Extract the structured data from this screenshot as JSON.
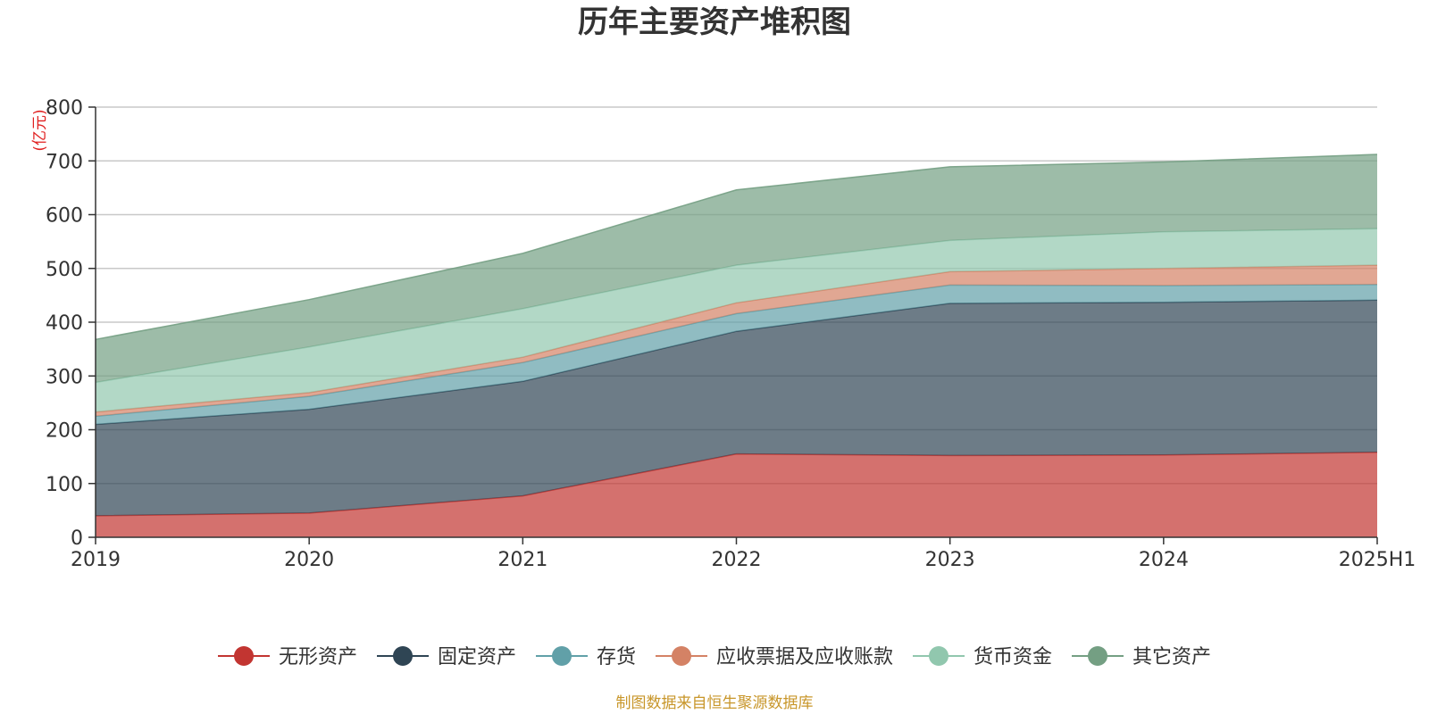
{
  "chart_data": {
    "type": "area",
    "stacked": true,
    "title": "历年主要资产堆积图",
    "unit": "(亿元)",
    "source": "制图数据来自恒生聚源数据库",
    "categories": [
      "2019",
      "2020",
      "2021",
      "2022",
      "2023",
      "2024",
      "2025H1"
    ],
    "ylim": [
      0,
      800
    ],
    "yticks": [
      0,
      100,
      200,
      300,
      400,
      500,
      600,
      700,
      800
    ],
    "grid": true,
    "legend_position": "bottom",
    "series": [
      {
        "name": "无形资产",
        "color": "#c23531",
        "values": [
          40,
          45,
          77,
          155,
          152,
          153,
          158
        ]
      },
      {
        "name": "固定资产",
        "color": "#2f4554",
        "values": [
          170,
          193,
          213,
          228,
          283,
          284,
          283
        ]
      },
      {
        "name": "存货",
        "color": "#61a0a8",
        "values": [
          15,
          24,
          35,
          33,
          34,
          31,
          29
        ]
      },
      {
        "name": "应收票据及应收账款",
        "color": "#d48265",
        "values": [
          8,
          7,
          10,
          20,
          25,
          32,
          36
        ]
      },
      {
        "name": "货币资金",
        "color": "#91c7ae",
        "values": [
          55,
          85,
          90,
          70,
          58,
          68,
          68
        ]
      },
      {
        "name": "其它资产",
        "color": "#749f83",
        "values": [
          80,
          88,
          103,
          140,
          137,
          130,
          138
        ]
      }
    ]
  }
}
